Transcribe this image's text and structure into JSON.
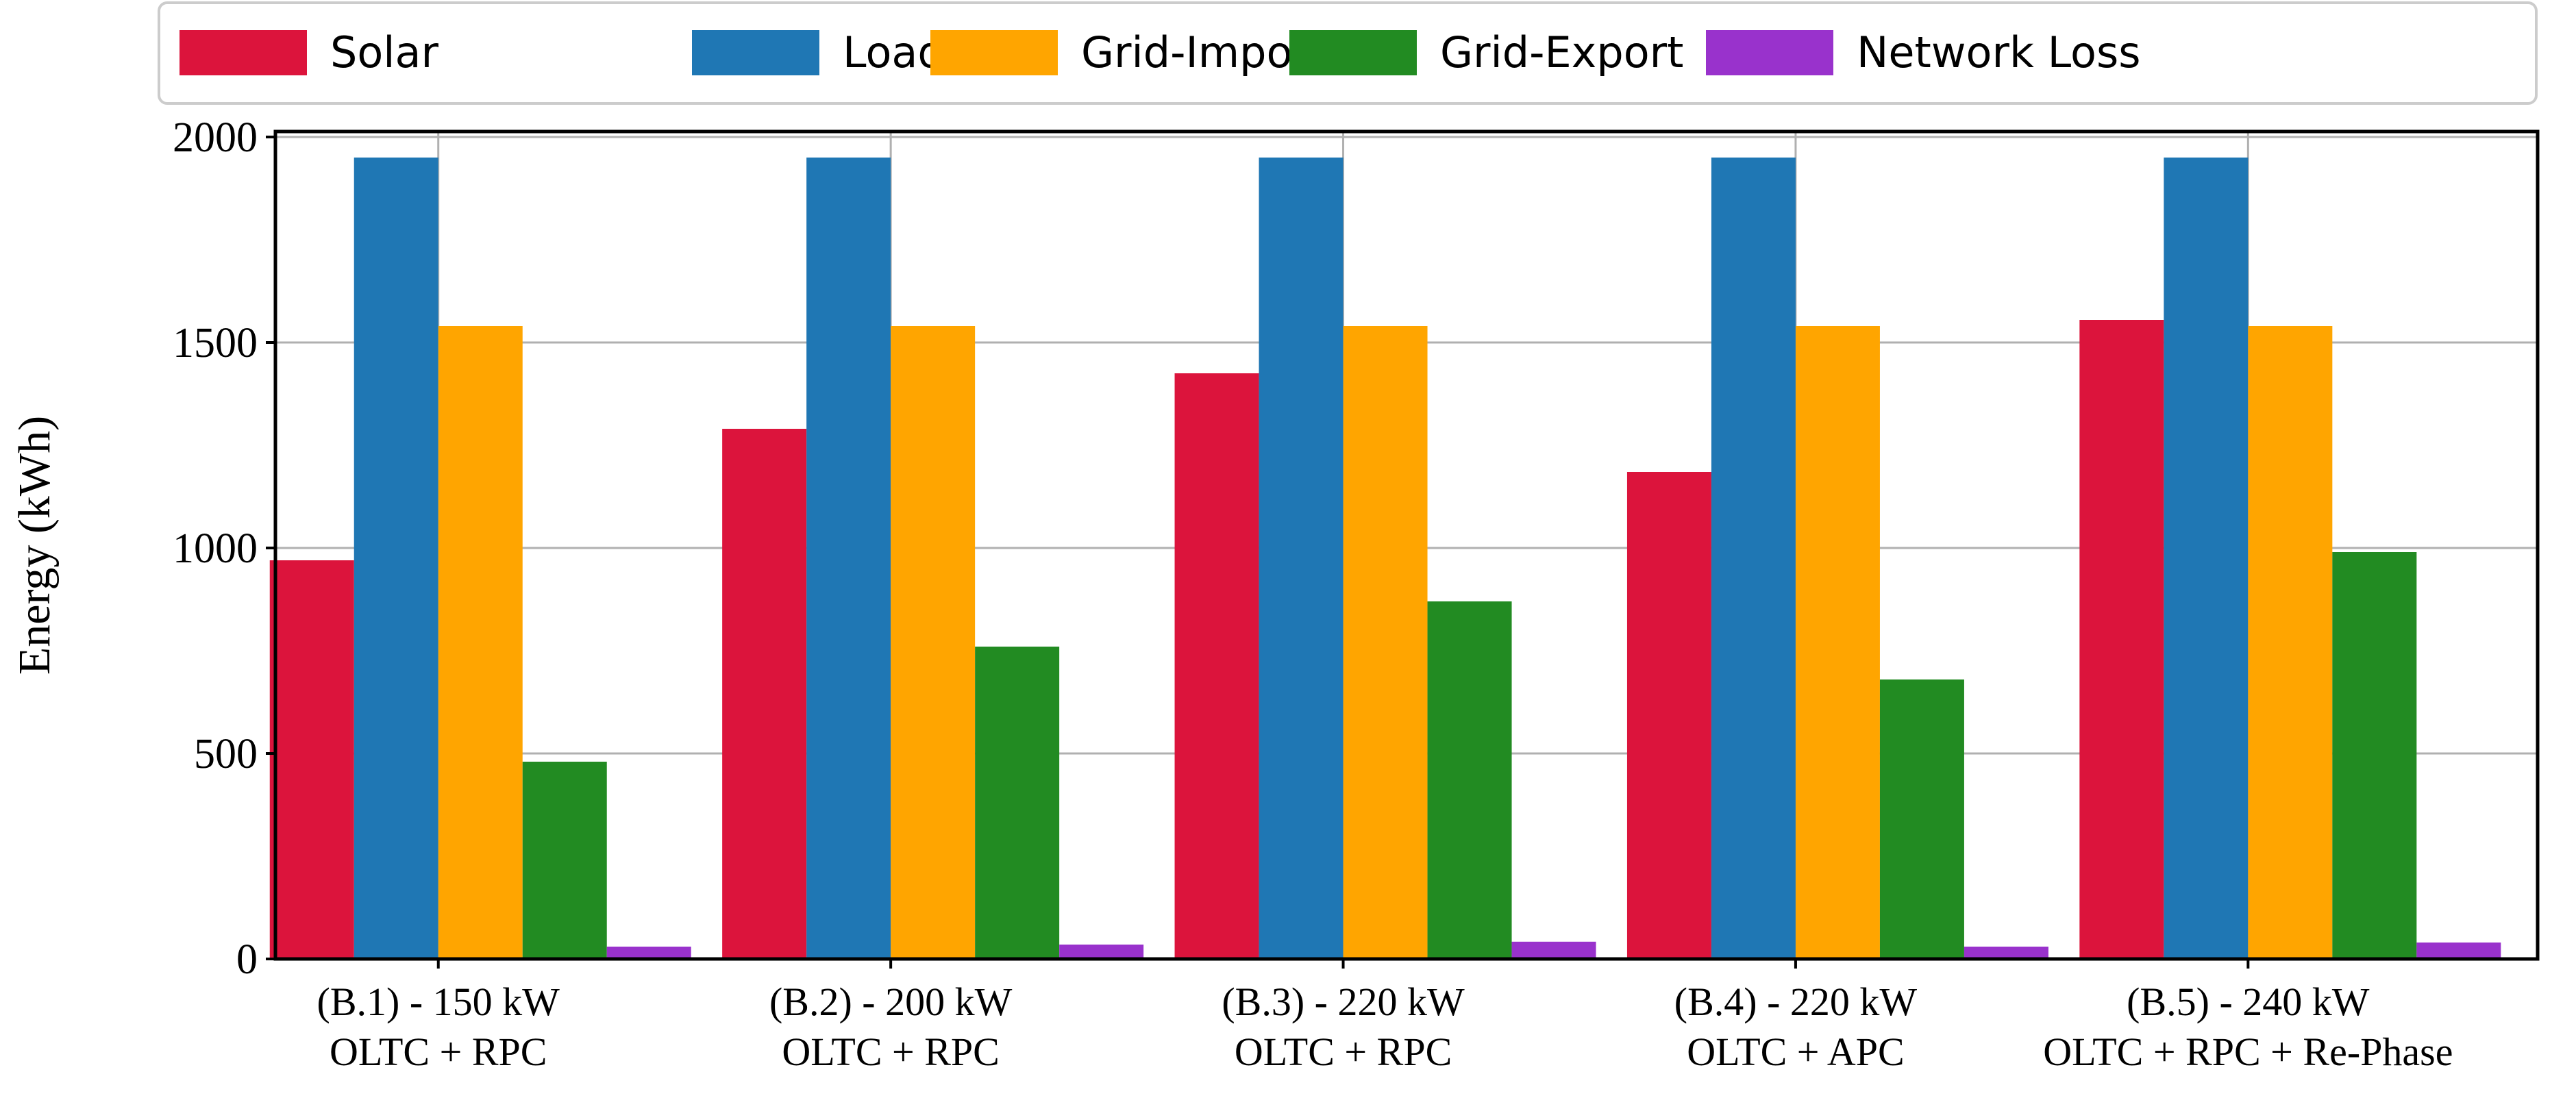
{
  "chart_data": {
    "type": "bar",
    "title": "",
    "xlabel": "",
    "ylabel": "Energy (kWh)",
    "ylim": [
      0,
      2000
    ],
    "yticks": [
      0,
      500,
      1000,
      1500,
      2000
    ],
    "grid": true,
    "legend_position": "top",
    "categories": [
      [
        "(B.1) - 150 kW",
        "OLTC + RPC"
      ],
      [
        "(B.2) - 200 kW",
        "OLTC + RPC"
      ],
      [
        "(B.3) - 220 kW",
        "OLTC + RPC"
      ],
      [
        "(B.4) - 220 kW",
        "OLTC + APC"
      ],
      [
        "(B.5) - 240 kW",
        "OLTC + RPC + Re-Phase"
      ]
    ],
    "series": [
      {
        "name": "Solar",
        "color": "#DC143C",
        "values": [
          970,
          1290,
          1425,
          1185,
          1555
        ]
      },
      {
        "name": "Load",
        "color": "#1F77B4",
        "values": [
          1950,
          1950,
          1950,
          1950,
          1950
        ]
      },
      {
        "name": "Grid-Import",
        "color": "#FFA500",
        "values": [
          1540,
          1540,
          1540,
          1540,
          1540
        ]
      },
      {
        "name": "Grid-Export",
        "color": "#228B22",
        "values": [
          480,
          760,
          870,
          680,
          990
        ]
      },
      {
        "name": "Network Loss",
        "color": "#9932CC",
        "values": [
          30,
          35,
          42,
          30,
          40
        ]
      }
    ]
  }
}
